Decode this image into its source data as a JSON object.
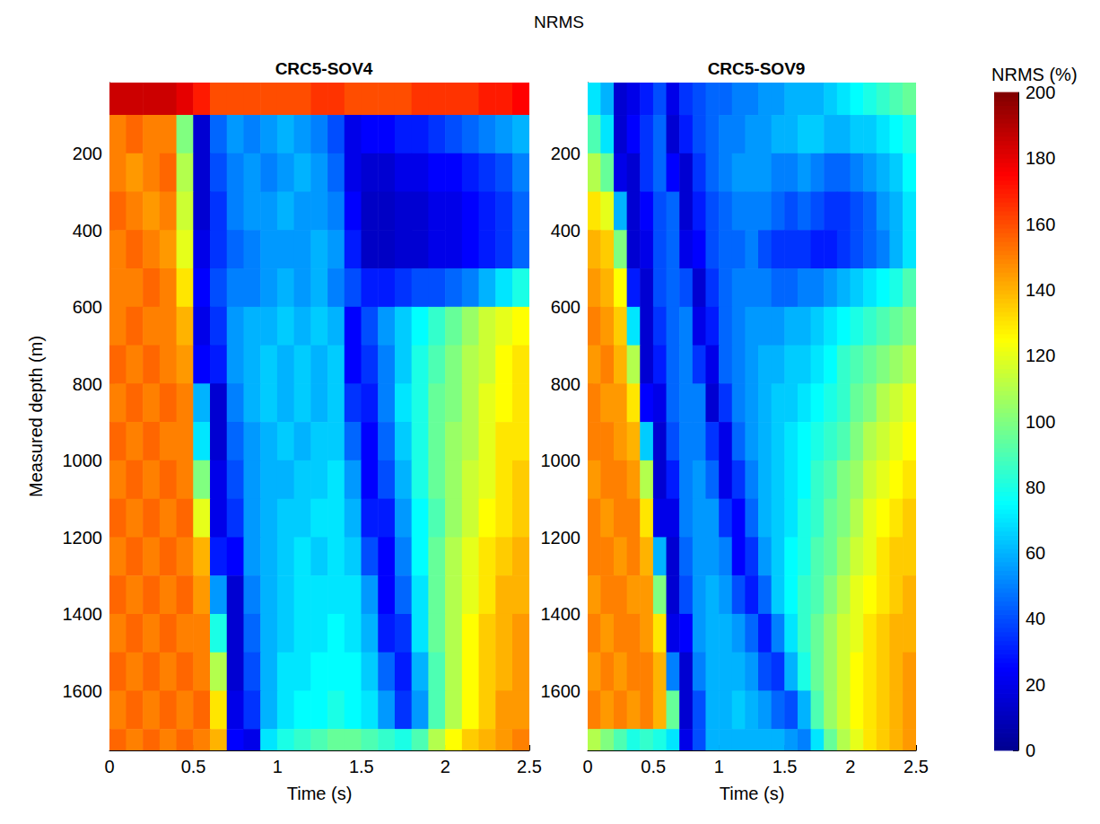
{
  "title": "NRMS",
  "colorbar": {
    "label": "NRMS (%)",
    "range": [
      0,
      200
    ],
    "ticks": [
      0,
      20,
      40,
      60,
      80,
      100,
      120,
      140,
      160,
      180,
      200
    ]
  },
  "chart_data": [
    {
      "type": "heatmap",
      "title": "CRC5-SOV4",
      "xlabel": "Time (s)",
      "ylabel": "Measured depth (m)",
      "x": [
        0.05,
        0.15,
        0.25,
        0.35,
        0.45,
        0.55,
        0.65,
        0.75,
        0.85,
        0.95,
        1.05,
        1.15,
        1.25,
        1.35,
        1.45,
        1.55,
        1.65,
        1.75,
        1.85,
        1.95,
        2.05,
        2.15,
        2.25,
        2.35,
        2.45
      ],
      "y": [
        50,
        150,
        250,
        350,
        450,
        550,
        650,
        750,
        850,
        950,
        1050,
        1150,
        1250,
        1350,
        1450,
        1550,
        1650,
        1750
      ],
      "z": [
        [
          185,
          185,
          185,
          185,
          180,
          170,
          160,
          160,
          160,
          160,
          160,
          160,
          165,
          165,
          160,
          160,
          160,
          160,
          165,
          165,
          165,
          165,
          170,
          170,
          175
        ],
        [
          150,
          155,
          150,
          150,
          100,
          15,
          45,
          55,
          50,
          55,
          60,
          55,
          50,
          40,
          20,
          25,
          25,
          30,
          30,
          35,
          40,
          45,
          50,
          55,
          60
        ],
        [
          150,
          145,
          150,
          155,
          110,
          15,
          40,
          50,
          55,
          50,
          55,
          60,
          55,
          45,
          20,
          15,
          15,
          20,
          20,
          25,
          25,
          30,
          35,
          40,
          50
        ],
        [
          155,
          150,
          145,
          150,
          115,
          15,
          35,
          50,
          55,
          55,
          60,
          55,
          55,
          50,
          25,
          12,
          12,
          15,
          15,
          20,
          20,
          25,
          30,
          35,
          45
        ],
        [
          150,
          155,
          150,
          145,
          120,
          20,
          35,
          45,
          50,
          55,
          55,
          55,
          60,
          55,
          30,
          12,
          12,
          15,
          15,
          20,
          20,
          25,
          30,
          35,
          45
        ],
        [
          150,
          150,
          155,
          150,
          130,
          25,
          40,
          50,
          50,
          55,
          60,
          55,
          60,
          50,
          40,
          30,
          30,
          35,
          40,
          40,
          45,
          50,
          60,
          70,
          80
        ],
        [
          150,
          155,
          150,
          150,
          140,
          20,
          35,
          55,
          60,
          60,
          65,
          60,
          65,
          60,
          25,
          40,
          55,
          65,
          75,
          85,
          95,
          105,
          115,
          120,
          125
        ],
        [
          155,
          150,
          155,
          150,
          145,
          25,
          30,
          55,
          60,
          65,
          60,
          65,
          60,
          65,
          25,
          35,
          50,
          65,
          80,
          90,
          100,
          110,
          115,
          125,
          130
        ],
        [
          150,
          155,
          150,
          155,
          150,
          60,
          15,
          50,
          60,
          65,
          60,
          65,
          60,
          65,
          35,
          30,
          50,
          70,
          80,
          95,
          100,
          110,
          120,
          125,
          130
        ],
        [
          155,
          150,
          155,
          150,
          150,
          70,
          15,
          45,
          55,
          60,
          65,
          60,
          65,
          65,
          45,
          25,
          45,
          65,
          80,
          95,
          105,
          110,
          120,
          130,
          130
        ],
        [
          150,
          155,
          150,
          155,
          150,
          100,
          20,
          40,
          55,
          60,
          60,
          65,
          65,
          70,
          55,
          25,
          40,
          60,
          80,
          95,
          105,
          115,
          120,
          130,
          135
        ],
        [
          155,
          150,
          155,
          150,
          155,
          120,
          20,
          35,
          55,
          60,
          65,
          65,
          70,
          70,
          60,
          30,
          30,
          55,
          75,
          90,
          105,
          115,
          125,
          130,
          135
        ],
        [
          150,
          155,
          150,
          155,
          150,
          140,
          30,
          25,
          55,
          60,
          65,
          70,
          65,
          70,
          65,
          40,
          25,
          50,
          75,
          95,
          110,
          120,
          130,
          135,
          140
        ],
        [
          155,
          150,
          155,
          150,
          155,
          145,
          55,
          15,
          50,
          60,
          65,
          70,
          70,
          70,
          70,
          55,
          25,
          45,
          70,
          95,
          110,
          120,
          130,
          140,
          140
        ],
        [
          150,
          155,
          150,
          155,
          150,
          150,
          80,
          15,
          45,
          60,
          65,
          70,
          70,
          75,
          70,
          60,
          30,
          35,
          70,
          95,
          110,
          125,
          135,
          140,
          145
        ],
        [
          155,
          150,
          155,
          150,
          155,
          150,
          110,
          15,
          40,
          60,
          70,
          70,
          75,
          75,
          75,
          65,
          45,
          30,
          60,
          90,
          110,
          125,
          135,
          140,
          145
        ],
        [
          150,
          155,
          150,
          155,
          150,
          155,
          130,
          20,
          35,
          60,
          70,
          75,
          75,
          80,
          75,
          70,
          55,
          35,
          55,
          90,
          110,
          125,
          135,
          145,
          145
        ],
        [
          155,
          150,
          155,
          150,
          155,
          150,
          140,
          25,
          20,
          70,
          80,
          85,
          90,
          95,
          95,
          90,
          85,
          80,
          90,
          110,
          125,
          135,
          140,
          145,
          150
        ]
      ],
      "xlim": [
        0,
        2.5
      ],
      "xticks": [
        0,
        0.5,
        1,
        1.5,
        2,
        2.5
      ],
      "ylim": [
        1755,
        15
      ],
      "yticks": [
        200,
        400,
        600,
        800,
        1000,
        1200,
        1400,
        1600
      ],
      "grid": false
    },
    {
      "type": "heatmap",
      "title": "CRC5-SOV9",
      "xlabel": "Time (s)",
      "x": [
        0.05,
        0.15,
        0.25,
        0.35,
        0.45,
        0.55,
        0.65,
        0.75,
        0.85,
        0.95,
        1.05,
        1.15,
        1.25,
        1.35,
        1.45,
        1.55,
        1.65,
        1.75,
        1.85,
        1.95,
        2.05,
        2.15,
        2.25,
        2.35,
        2.45
      ],
      "y": [
        50,
        150,
        250,
        350,
        450,
        550,
        650,
        750,
        850,
        950,
        1050,
        1150,
        1250,
        1350,
        1450,
        1550,
        1650,
        1750
      ],
      "z": [
        [
          70,
          60,
          15,
          20,
          30,
          40,
          20,
          35,
          40,
          45,
          45,
          50,
          50,
          55,
          55,
          60,
          60,
          60,
          65,
          70,
          75,
          80,
          85,
          90,
          95
        ],
        [
          90,
          70,
          15,
          25,
          35,
          45,
          15,
          30,
          40,
          45,
          50,
          50,
          55,
          55,
          60,
          60,
          65,
          65,
          60,
          60,
          65,
          65,
          70,
          75,
          80
        ],
        [
          110,
          95,
          20,
          15,
          35,
          45,
          25,
          15,
          35,
          45,
          50,
          55,
          55,
          55,
          50,
          50,
          55,
          50,
          45,
          45,
          50,
          55,
          60,
          65,
          75
        ],
        [
          130,
          120,
          60,
          15,
          25,
          40,
          45,
          15,
          30,
          40,
          45,
          50,
          50,
          50,
          45,
          40,
          45,
          40,
          35,
          35,
          40,
          45,
          55,
          60,
          70
        ],
        [
          140,
          135,
          100,
          15,
          20,
          40,
          45,
          20,
          25,
          40,
          45,
          45,
          50,
          40,
          35,
          35,
          35,
          30,
          30,
          35,
          40,
          45,
          50,
          60,
          70
        ],
        [
          145,
          140,
          125,
          30,
          15,
          40,
          45,
          40,
          15,
          35,
          45,
          50,
          50,
          50,
          45,
          45,
          50,
          50,
          55,
          60,
          65,
          70,
          75,
          80,
          90
        ],
        [
          150,
          145,
          135,
          70,
          15,
          35,
          45,
          50,
          20,
          30,
          45,
          50,
          55,
          55,
          55,
          60,
          60,
          65,
          70,
          75,
          80,
          85,
          90,
          95,
          100
        ],
        [
          145,
          150,
          140,
          110,
          15,
          30,
          45,
          50,
          35,
          20,
          45,
          50,
          55,
          60,
          60,
          65,
          65,
          70,
          75,
          85,
          90,
          95,
          100,
          105,
          110
        ],
        [
          150,
          145,
          145,
          130,
          25,
          20,
          45,
          50,
          50,
          15,
          35,
          50,
          55,
          60,
          65,
          65,
          70,
          75,
          80,
          85,
          95,
          100,
          110,
          115,
          120
        ],
        [
          150,
          150,
          145,
          140,
          65,
          15,
          40,
          50,
          50,
          35,
          20,
          45,
          55,
          60,
          65,
          70,
          75,
          80,
          85,
          90,
          100,
          110,
          115,
          120,
          125
        ],
        [
          145,
          150,
          150,
          145,
          110,
          15,
          30,
          50,
          55,
          45,
          20,
          35,
          50,
          60,
          65,
          70,
          75,
          85,
          90,
          100,
          105,
          115,
          120,
          125,
          130
        ],
        [
          150,
          145,
          150,
          150,
          130,
          20,
          20,
          50,
          55,
          55,
          35,
          25,
          45,
          60,
          65,
          70,
          80,
          85,
          95,
          100,
          110,
          120,
          125,
          130,
          135
        ],
        [
          150,
          150,
          145,
          150,
          140,
          60,
          15,
          45,
          55,
          55,
          50,
          25,
          35,
          55,
          65,
          75,
          80,
          90,
          95,
          105,
          115,
          120,
          130,
          135,
          135
        ],
        [
          145,
          150,
          150,
          145,
          145,
          100,
          15,
          40,
          55,
          60,
          55,
          40,
          30,
          45,
          65,
          75,
          85,
          90,
          100,
          110,
          120,
          125,
          130,
          135,
          140
        ],
        [
          150,
          145,
          150,
          150,
          145,
          130,
          20,
          25,
          55,
          60,
          60,
          55,
          45,
          30,
          50,
          70,
          85,
          95,
          105,
          115,
          120,
          130,
          135,
          140,
          140
        ],
        [
          145,
          150,
          145,
          150,
          150,
          140,
          50,
          15,
          50,
          60,
          60,
          60,
          55,
          40,
          35,
          60,
          80,
          95,
          105,
          115,
          125,
          130,
          135,
          140,
          145
        ],
        [
          150,
          145,
          150,
          145,
          150,
          140,
          95,
          15,
          40,
          60,
          60,
          65,
          60,
          55,
          45,
          40,
          60,
          90,
          105,
          115,
          125,
          130,
          135,
          140,
          145
        ],
        [
          110,
          100,
          90,
          80,
          85,
          80,
          70,
          20,
          40,
          60,
          60,
          60,
          60,
          60,
          60,
          55,
          50,
          70,
          95,
          110,
          120,
          130,
          135,
          140,
          145
        ]
      ],
      "xlim": [
        0,
        2.5
      ],
      "xticks": [
        0,
        0.5,
        1,
        1.5,
        2,
        2.5
      ],
      "ylim": [
        1755,
        15
      ],
      "yticks": [
        200,
        400,
        600,
        800,
        1000,
        1200,
        1400,
        1600
      ],
      "grid": false
    }
  ]
}
